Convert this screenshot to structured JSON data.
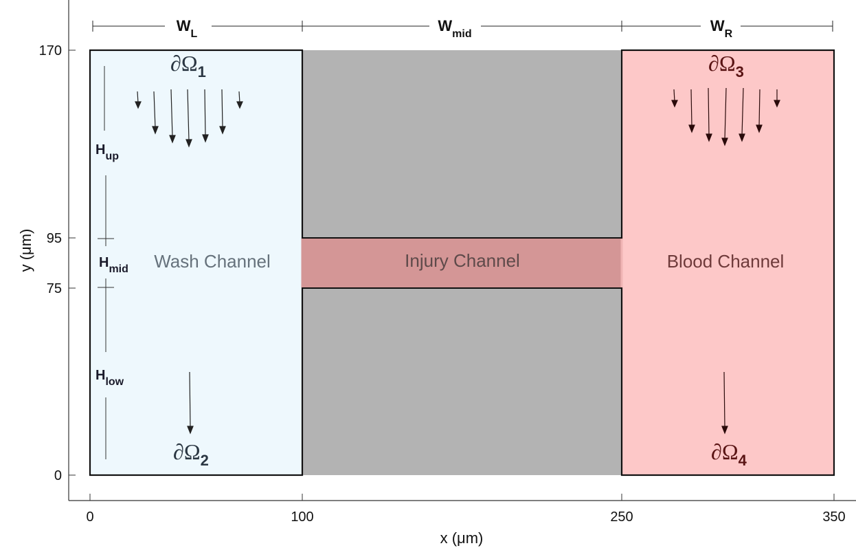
{
  "axes": {
    "xlabel": "x (μm)",
    "ylabel": "y (μm)",
    "xticks": [
      "0",
      "100",
      "250",
      "350"
    ],
    "yticks": [
      "0",
      "75",
      "95",
      "170"
    ],
    "xlim": [
      0,
      350
    ],
    "ylim": [
      0,
      170
    ]
  },
  "dimensions": {
    "w_left": {
      "base": "W",
      "sub": "L"
    },
    "w_mid": {
      "base": "W",
      "sub": "mid"
    },
    "w_right": {
      "base": "W",
      "sub": "R"
    },
    "h_up": {
      "base": "H",
      "sub": "up"
    },
    "h_mid": {
      "base": "H",
      "sub": "mid"
    },
    "h_low": {
      "base": "H",
      "sub": "low"
    }
  },
  "boundaries": {
    "b1": {
      "base": "∂Ω",
      "sub": "1"
    },
    "b2": {
      "base": "∂Ω",
      "sub": "2"
    },
    "b3": {
      "base": "∂Ω",
      "sub": "3"
    },
    "b4": {
      "base": "∂Ω",
      "sub": "4"
    }
  },
  "channels": {
    "wash": "Wash Channel",
    "injury": "Injury Channel",
    "blood": "Blood Channel"
  },
  "colors": {
    "wash_fill": "#eef8fd",
    "gray_fill": "#b3b3b3",
    "injury_fill": "#d49696",
    "blood_fill": "#fdc8c8",
    "wash_text": "#66727c",
    "injury_text": "#5e4a4a",
    "blood_text": "#6e3a3a",
    "blood_boundary": "#5a1414"
  }
}
